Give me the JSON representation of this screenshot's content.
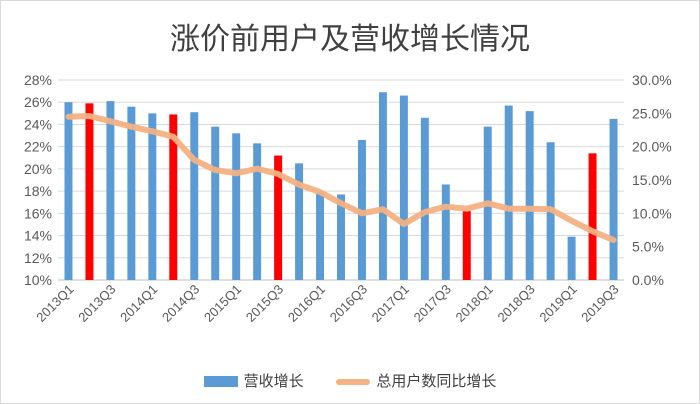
{
  "chart_data": {
    "type": "bar",
    "title": "涨价前用户及营收增长情况",
    "categories": [
      "2013Q1",
      "2013Q2",
      "2013Q3",
      "2013Q4",
      "2014Q1",
      "2014Q2",
      "2014Q3",
      "2014Q4",
      "2015Q1",
      "2015Q2",
      "2015Q3",
      "2015Q4",
      "2016Q1",
      "2016Q2",
      "2016Q3",
      "2016Q4",
      "2017Q1",
      "2017Q2",
      "2017Q3",
      "2017Q4",
      "2018Q1",
      "2018Q2",
      "2018Q3",
      "2018Q4",
      "2019Q1",
      "2019Q2",
      "2019Q3"
    ],
    "x_tick_labels": [
      "2013Q1",
      "2013Q3",
      "2014Q1",
      "2014Q3",
      "2015Q1",
      "2015Q3",
      "2016Q1",
      "2016Q3",
      "2017Q1",
      "2017Q3",
      "2018Q1",
      "2018Q3",
      "2019Q1",
      "2019Q3"
    ],
    "series": [
      {
        "name": "营收增长",
        "axis": "left",
        "color": "#5b9bd5",
        "highlight_color": "#ff0000",
        "values": [
          26.0,
          25.9,
          26.1,
          25.6,
          25.0,
          24.9,
          25.1,
          23.8,
          23.2,
          22.3,
          21.2,
          20.5,
          17.9,
          17.7,
          22.6,
          26.9,
          26.6,
          24.6,
          18.6,
          16.2,
          23.8,
          25.7,
          25.2,
          22.4,
          13.9,
          21.4,
          24.5
        ],
        "highlighted": [
          false,
          true,
          false,
          false,
          false,
          true,
          false,
          false,
          false,
          false,
          true,
          false,
          false,
          false,
          false,
          false,
          false,
          false,
          false,
          true,
          false,
          false,
          false,
          false,
          false,
          true,
          false
        ]
      },
      {
        "name": "总用户数同比增长",
        "axis": "right",
        "color": "#f4b183",
        "values": [
          24.5,
          24.6,
          23.8,
          23.0,
          22.3,
          21.5,
          18.0,
          16.5,
          16.0,
          16.7,
          15.9,
          14.3,
          13.2,
          11.5,
          10.0,
          10.6,
          8.4,
          10.2,
          11.0,
          10.7,
          11.5,
          10.7,
          10.7,
          10.6,
          8.9,
          7.3,
          6.0
        ]
      }
    ],
    "y_left": {
      "min": 10,
      "max": 28,
      "step": 2,
      "tick_labels": [
        "10%",
        "12%",
        "14%",
        "16%",
        "18%",
        "20%",
        "22%",
        "24%",
        "26%",
        "28%"
      ]
    },
    "y_right": {
      "min": 0,
      "max": 30,
      "step": 5,
      "tick_labels": [
        "0.0%",
        "5.0%",
        "10.0%",
        "15.0%",
        "20.0%",
        "25.0%",
        "30.0%"
      ]
    },
    "grid": true,
    "legend_position": "bottom"
  }
}
